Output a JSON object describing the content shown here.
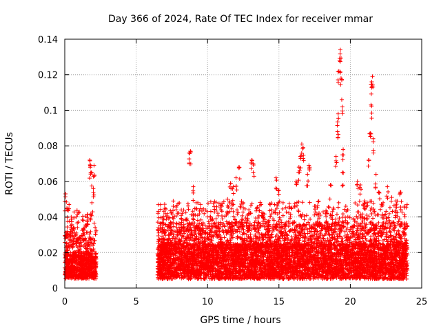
{
  "chart_data": {
    "type": "scatter",
    "title": "Day 366 of 2024, Rate Of TEC Index for receiver mmar",
    "xlabel": "GPS time / hours",
    "ylabel": "ROTI / TECUs",
    "xlim": [
      0,
      25
    ],
    "ylim": [
      0,
      0.14
    ],
    "xticks": [
      "0",
      "5",
      "10",
      "15",
      "20",
      "25"
    ],
    "yticks": [
      "0",
      "0.02",
      "0.04",
      "0.06",
      "0.08",
      "0.1",
      "0.12",
      "0.14"
    ],
    "grid": true,
    "marker": "+",
    "color": "#ff0000",
    "series": [
      {
        "name": "ROTI",
        "data_segments": [
          {
            "x_range": [
              0.0,
              2.2
            ],
            "typical_range": [
              0.005,
              0.02
            ],
            "max": 0.072
          },
          {
            "x_range": [
              6.5,
              24.0
            ],
            "typical_range": [
              0.005,
              0.025
            ],
            "max": 0.134
          }
        ],
        "points": [
          [
            0.05,
            0.053
          ],
          [
            0.15,
            0.045
          ],
          [
            0.3,
            0.047
          ],
          [
            0.45,
            0.04
          ],
          [
            0.6,
            0.034
          ],
          [
            0.8,
            0.031
          ],
          [
            1.0,
            0.028
          ],
          [
            1.3,
            0.033
          ],
          [
            1.6,
            0.036
          ],
          [
            1.75,
            0.072
          ],
          [
            1.8,
            0.069
          ],
          [
            1.85,
            0.065
          ],
          [
            1.9,
            0.048
          ],
          [
            2.0,
            0.056
          ],
          [
            2.05,
            0.069
          ],
          [
            6.8,
            0.028
          ],
          [
            7.2,
            0.024
          ],
          [
            7.4,
            0.037
          ],
          [
            7.6,
            0.046
          ],
          [
            7.8,
            0.026
          ],
          [
            8.0,
            0.03
          ],
          [
            8.3,
            0.038
          ],
          [
            8.7,
            0.076
          ],
          [
            8.8,
            0.077
          ],
          [
            9.0,
            0.057
          ],
          [
            9.2,
            0.048
          ],
          [
            9.5,
            0.032
          ],
          [
            9.8,
            0.031
          ],
          [
            10.2,
            0.04
          ],
          [
            10.6,
            0.039
          ],
          [
            11.0,
            0.046
          ],
          [
            11.4,
            0.05
          ],
          [
            11.6,
            0.059
          ],
          [
            11.8,
            0.057
          ],
          [
            12.0,
            0.062
          ],
          [
            12.2,
            0.068
          ],
          [
            12.5,
            0.048
          ],
          [
            12.8,
            0.041
          ],
          [
            13.1,
            0.072
          ],
          [
            13.2,
            0.07
          ],
          [
            13.5,
            0.035
          ],
          [
            13.9,
            0.042
          ],
          [
            14.3,
            0.038
          ],
          [
            14.7,
            0.047
          ],
          [
            14.8,
            0.062
          ],
          [
            15.0,
            0.055
          ],
          [
            15.4,
            0.036
          ],
          [
            15.8,
            0.04
          ],
          [
            16.2,
            0.06
          ],
          [
            16.4,
            0.068
          ],
          [
            16.5,
            0.074
          ],
          [
            16.6,
            0.081
          ],
          [
            16.7,
            0.079
          ],
          [
            17.0,
            0.064
          ],
          [
            17.1,
            0.069
          ],
          [
            17.5,
            0.046
          ],
          [
            17.9,
            0.041
          ],
          [
            18.3,
            0.043
          ],
          [
            18.6,
            0.058
          ],
          [
            18.8,
            0.045
          ],
          [
            19.0,
            0.074
          ],
          [
            19.1,
            0.088
          ],
          [
            19.15,
            0.098
          ],
          [
            19.2,
            0.122
          ],
          [
            19.25,
            0.128
          ],
          [
            19.3,
            0.134
          ],
          [
            19.35,
            0.118
          ],
          [
            19.4,
            0.106
          ],
          [
            19.45,
            0.065
          ],
          [
            19.5,
            0.078
          ],
          [
            19.8,
            0.044
          ],
          [
            20.2,
            0.039
          ],
          [
            20.5,
            0.06
          ],
          [
            20.7,
            0.058
          ],
          [
            21.0,
            0.049
          ],
          [
            21.3,
            0.072
          ],
          [
            21.4,
            0.087
          ],
          [
            21.45,
            0.103
          ],
          [
            21.5,
            0.116
          ],
          [
            21.55,
            0.119
          ],
          [
            21.6,
            0.084
          ],
          [
            21.8,
            0.064
          ],
          [
            22.0,
            0.054
          ],
          [
            22.3,
            0.048
          ],
          [
            22.6,
            0.057
          ],
          [
            22.9,
            0.051
          ],
          [
            23.2,
            0.049
          ],
          [
            23.5,
            0.054
          ],
          [
            23.8,
            0.046
          ]
        ]
      }
    ]
  }
}
